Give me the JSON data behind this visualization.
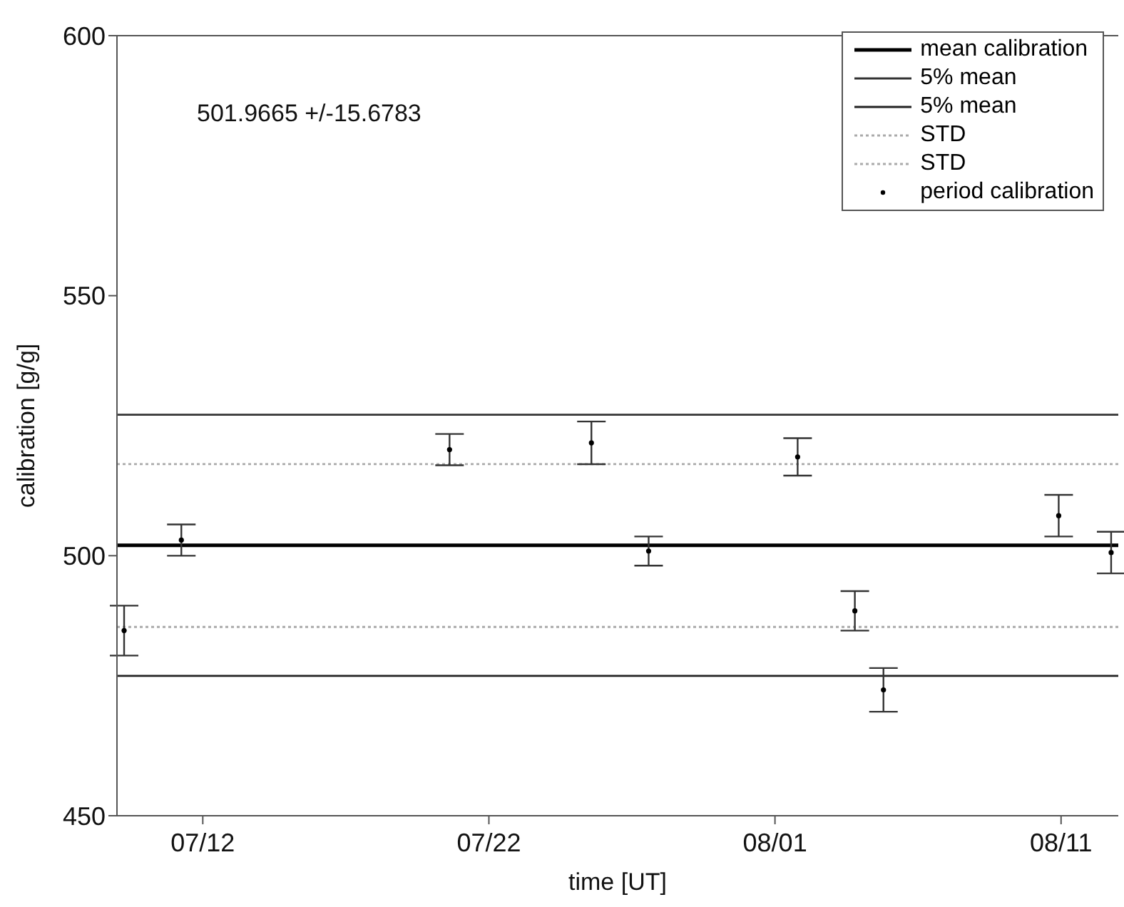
{
  "chart_data": {
    "type": "scatter",
    "xlabel": "time [UT]",
    "ylabel": "calibration [g/g]",
    "xlim": [
      "--07-09",
      "--08-13"
    ],
    "xticks": [
      {
        "value": "--07-12",
        "label": "07/12"
      },
      {
        "value": "--07-22",
        "label": "07/22"
      },
      {
        "value": "--08-01",
        "label": "08/01"
      },
      {
        "value": "--08-11",
        "label": "08/11"
      }
    ],
    "ylim": [
      450,
      600
    ],
    "yticks": [
      450,
      500,
      550,
      600
    ],
    "grid": false,
    "legend": "top right",
    "annotations": [
      "501.9665 +/-15.6783"
    ],
    "series": [
      {
        "name": "mean calibration",
        "type": "line",
        "color": "#000000",
        "line_style": "solid",
        "marker": "none",
        "x": [
          "--07-09",
          "--08-13"
        ],
        "values": [
          502.0,
          502.0
        ]
      },
      {
        "name": "5% mean",
        "type": "line",
        "color": "#333333",
        "line_style": "solid",
        "marker": "none",
        "x": [
          "--07-09",
          "--08-13"
        ],
        "values": [
          527.1,
          527.1
        ]
      },
      {
        "name": "5% mean",
        "type": "line",
        "color": "#222222",
        "line_style": "solid",
        "marker": "none",
        "x": [
          "--07-09",
          "--08-13"
        ],
        "values": [
          476.9,
          476.9
        ]
      },
      {
        "name": "STD",
        "type": "line",
        "color": "#aaaaaa",
        "line_style": "dotted",
        "marker": "none",
        "x": [
          "--07-09",
          "--08-13"
        ],
        "values": [
          517.6,
          517.6
        ]
      },
      {
        "name": "STD",
        "type": "line",
        "color": "#aaaaaa",
        "line_style": "dotted",
        "marker": "none",
        "x": [
          "--07-09",
          "--08-13"
        ],
        "values": [
          486.3,
          486.3
        ]
      },
      {
        "name": "period calibration",
        "color": "#000000",
        "marker": "circle",
        "x": [
          "--07-09T06:00",
          "--07-11T06:00",
          "--07-20T15:00",
          "--07-25T14:00",
          "--07-27T14:00",
          "--08-01T19:00",
          "--08-03T19:00",
          "--08-04T19:00",
          "--08-10T22:00",
          "--08-12T18:00"
        ],
        "values": [
          485.6,
          503.0,
          520.4,
          521.7,
          500.9,
          519.0,
          489.4,
          474.2,
          507.7,
          500.6
        ],
        "errors": [
          4.8,
          3.0,
          3.0,
          4.1,
          2.8,
          3.6,
          3.8,
          4.2,
          4.0,
          4.0
        ]
      }
    ]
  }
}
